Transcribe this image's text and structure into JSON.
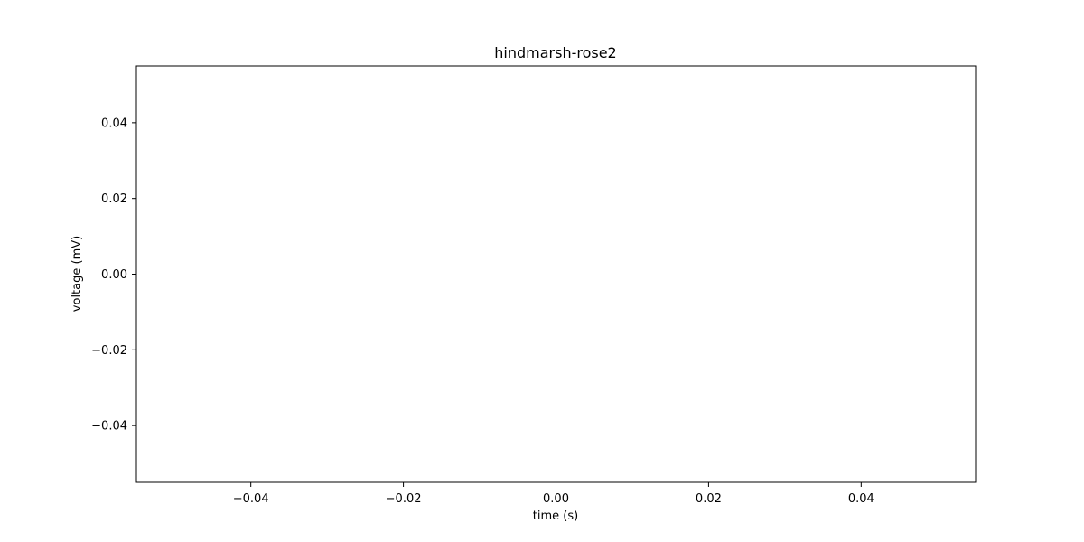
{
  "chart_data": {
    "type": "line",
    "title": "hindmarsh-rose2",
    "xlabel": "time (s)",
    "ylabel": "voltage (mV)",
    "xlim": [
      -0.055,
      0.055
    ],
    "ylim": [
      -0.055,
      0.055
    ],
    "xticks": [
      -0.04,
      -0.02,
      0.0,
      0.02,
      0.04
    ],
    "yticks": [
      -0.04,
      -0.02,
      0.0,
      0.02,
      0.04
    ],
    "xtick_labels": [
      "−0.04",
      "−0.02",
      "0.00",
      "0.02",
      "0.04"
    ],
    "ytick_labels": [
      "−0.04",
      "−0.02",
      "0.00",
      "0.02",
      "0.04"
    ],
    "grid": false,
    "series": [
      {
        "x": [],
        "y": []
      }
    ]
  }
}
